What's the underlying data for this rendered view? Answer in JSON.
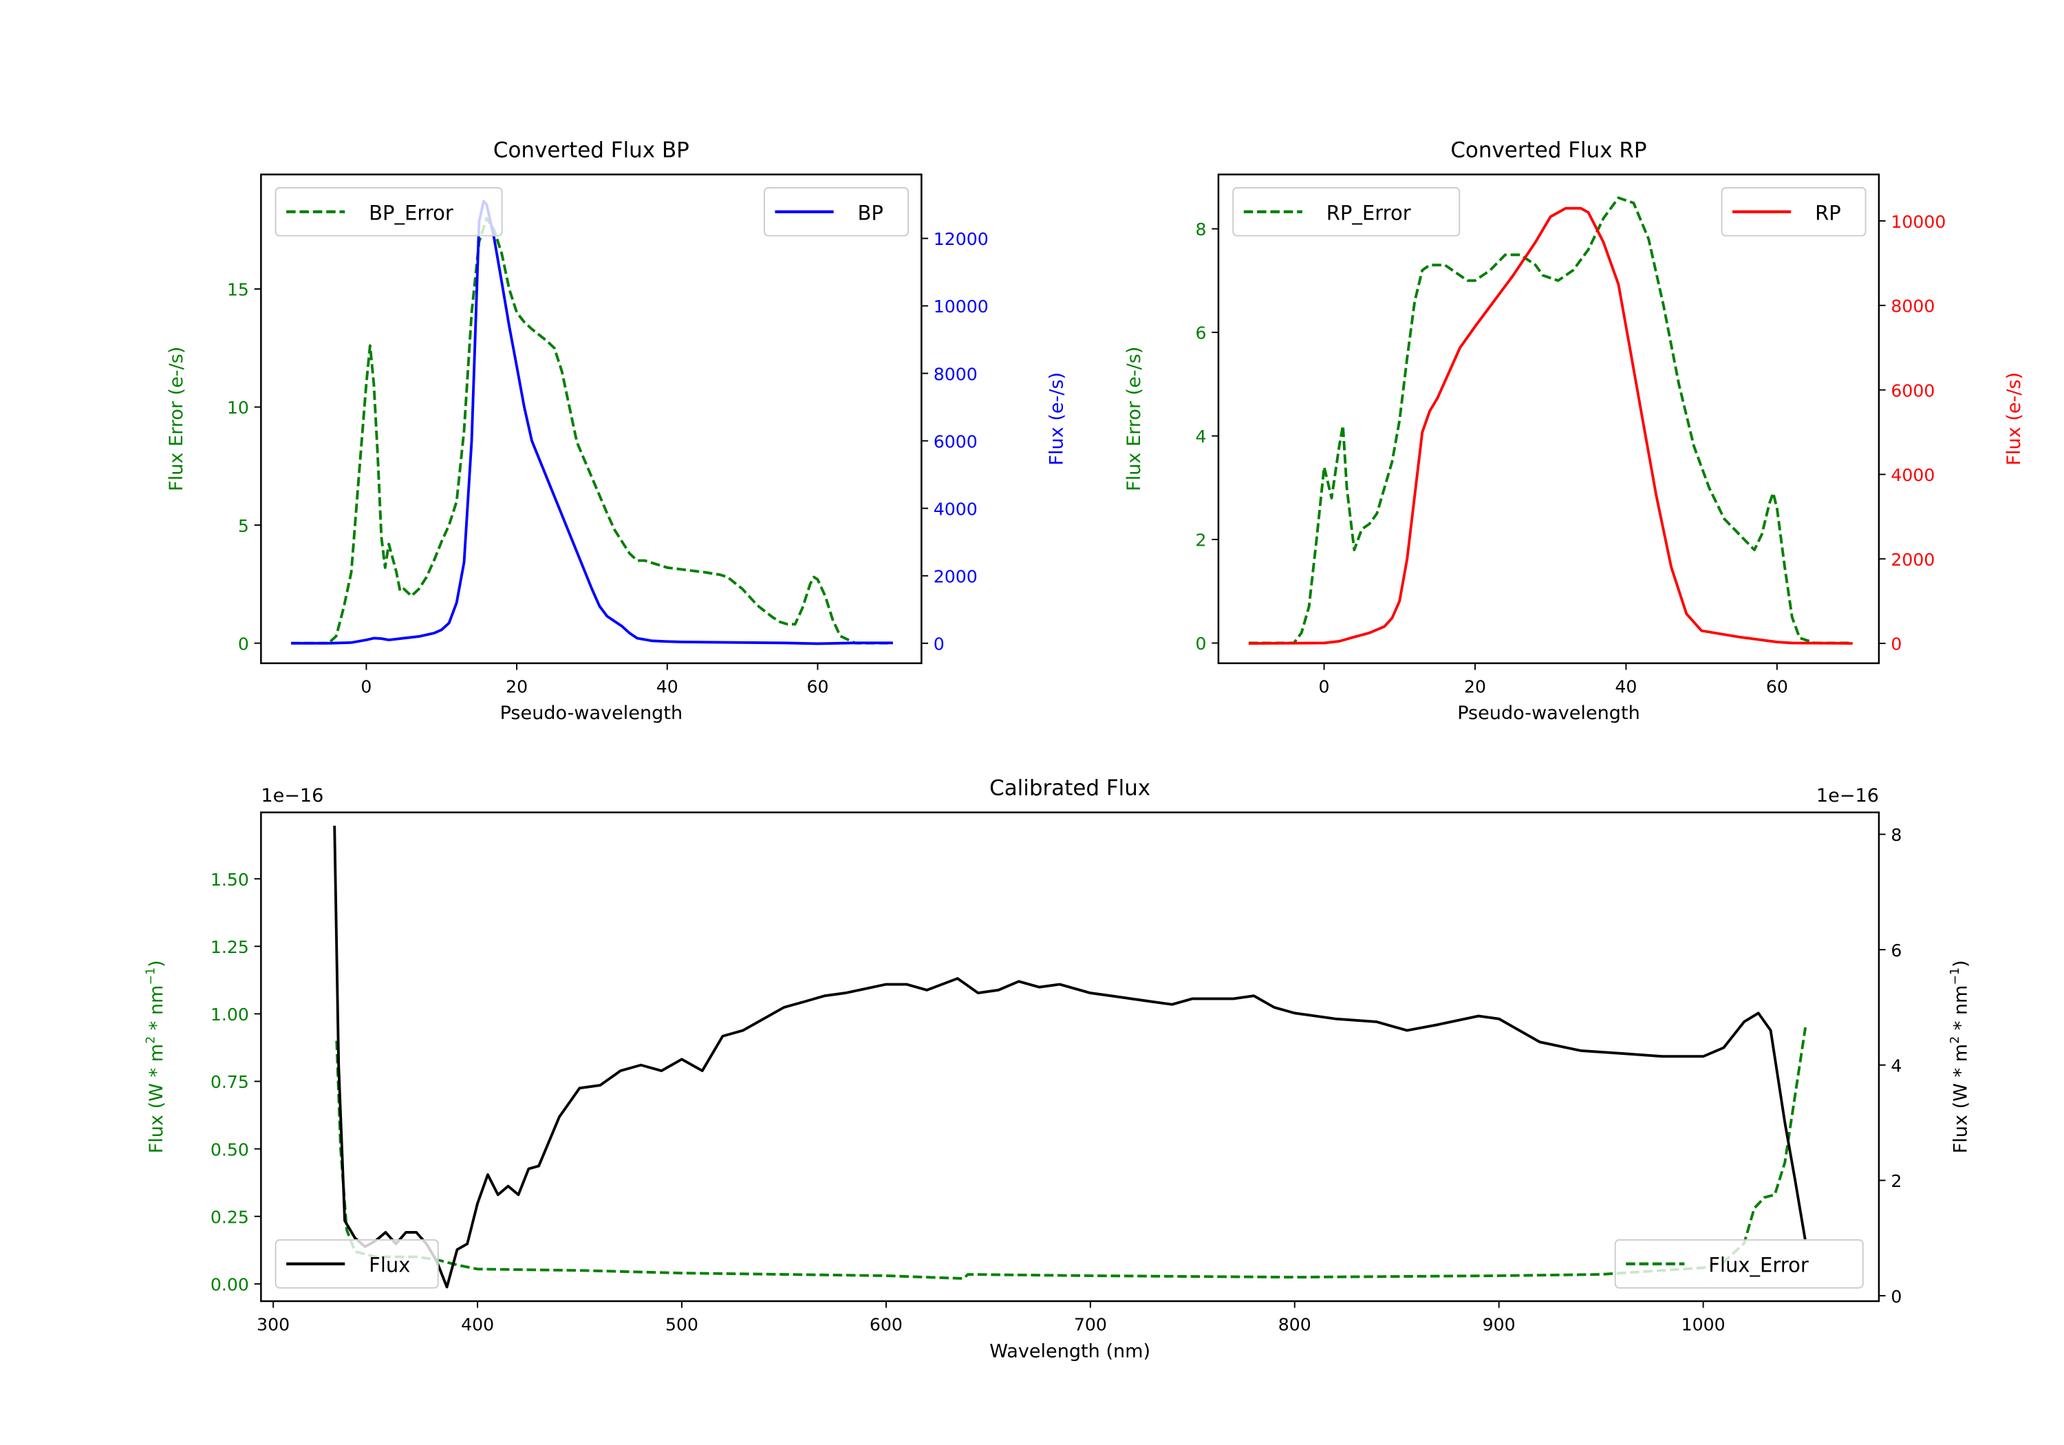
{
  "chart_data": [
    {
      "type": "line",
      "title": "Converted Flux BP",
      "xlabel": "Pseudo-wavelength",
      "ylabel": "Flux Error (e-/s)",
      "y2label": "Flux (e-/s)",
      "xlim": [
        -14,
        73.8
      ],
      "ylim": [
        -0.85,
        19.85
      ],
      "y2lim": [
        -592,
        13895
      ],
      "xticks": [
        0,
        20,
        40,
        60
      ],
      "yticks": [
        0,
        5,
        10,
        15
      ],
      "y2ticks": [
        0,
        2000,
        4000,
        6000,
        8000,
        10000,
        12000
      ],
      "colors": {
        "error": "#008000",
        "flux": "#0000ff",
        "axis2": "#0000ff",
        "axis1": "#008000"
      },
      "legend_left": {
        "label": "BP_Error",
        "placement": "upper-left"
      },
      "legend_right": {
        "label": "BP",
        "placement": "upper-right"
      },
      "series": [
        {
          "name": "BP_Error",
          "axis": "left",
          "style": "dashed",
          "x": [
            -10,
            -5,
            -4,
            -3,
            -2,
            -1,
            0,
            0.5,
            1,
            1.5,
            2,
            2.5,
            3,
            4,
            4.5,
            5,
            6,
            7,
            8,
            9,
            10,
            11,
            12,
            13,
            14,
            15,
            16,
            17,
            18,
            19,
            20,
            21,
            22,
            24,
            25,
            26,
            27,
            28,
            30,
            32,
            33,
            35,
            36,
            37,
            40,
            45,
            47,
            48,
            50,
            52,
            54,
            55,
            56,
            57,
            58,
            59,
            59.5,
            60,
            61,
            62,
            63,
            65,
            70
          ],
          "y": [
            0,
            0,
            0.3,
            1.5,
            3,
            7,
            11,
            12.6,
            11,
            8,
            4.5,
            3.2,
            4.2,
            3,
            2.2,
            2.3,
            2,
            2.3,
            2.8,
            3.5,
            4.3,
            5,
            6,
            9,
            14,
            17,
            18,
            17.5,
            16.5,
            15,
            14,
            13.6,
            13.3,
            12.8,
            12.5,
            11.5,
            10,
            8.5,
            7,
            5.5,
            4.8,
            3.8,
            3.5,
            3.5,
            3.2,
            3,
            2.9,
            2.8,
            2.3,
            1.6,
            1.1,
            0.9,
            0.8,
            0.8,
            1.5,
            2.5,
            2.8,
            2.7,
            2,
            1,
            0.3,
            0,
            0
          ]
        },
        {
          "name": "BP",
          "axis": "right",
          "style": "solid",
          "x": [
            -10,
            -5,
            -2,
            0,
            1,
            2,
            3,
            5,
            7,
            9,
            10,
            11,
            12,
            13,
            14,
            15,
            15.6,
            16,
            17,
            18,
            19,
            20,
            21,
            22,
            24,
            26,
            28,
            30,
            31,
            32,
            34,
            35,
            36,
            38,
            40,
            42,
            50,
            55,
            60,
            65,
            70
          ],
          "y": [
            0,
            0,
            20,
            100,
            150,
            140,
            100,
            150,
            200,
            300,
            400,
            600,
            1200,
            2400,
            6000,
            12500,
            13100,
            13000,
            12000,
            10700,
            9400,
            8200,
            7000,
            6000,
            4900,
            3800,
            2700,
            1600,
            1100,
            800,
            500,
            300,
            150,
            70,
            50,
            40,
            20,
            10,
            -10,
            10,
            10
          ]
        }
      ]
    },
    {
      "type": "line",
      "title": "Converted Flux RP",
      "xlabel": "Pseudo-wavelength",
      "ylabel": "Flux Error (e-/s)",
      "y2label": "Flux (e-/s)",
      "xlim": [
        -14,
        73.5
      ],
      "ylim": [
        -0.39,
        9.05
      ],
      "y2lim": [
        -470,
        11100
      ],
      "xticks": [
        0,
        20,
        40,
        60
      ],
      "yticks": [
        0,
        2,
        4,
        6,
        8
      ],
      "y2ticks": [
        0,
        2000,
        4000,
        6000,
        8000,
        10000
      ],
      "colors": {
        "error": "#008000",
        "flux": "#ff0000",
        "axis2": "#ff0000",
        "axis1": "#008000"
      },
      "legend_left": {
        "label": "RP_Error",
        "placement": "upper-left"
      },
      "legend_right": {
        "label": "RP",
        "placement": "upper-right"
      },
      "series": [
        {
          "name": "RP_Error",
          "axis": "left",
          "style": "dashed",
          "x": [
            -10,
            -4,
            -3,
            -2,
            -1,
            0,
            0.5,
            1,
            2,
            2.5,
            3,
            4,
            5,
            6,
            7,
            8,
            9,
            10,
            11,
            12,
            13,
            14,
            16,
            18,
            19,
            20,
            22,
            24,
            26,
            28,
            29,
            31,
            33,
            35,
            37,
            39,
            41,
            43,
            45,
            47,
            49,
            51,
            53,
            55,
            57,
            58,
            59,
            59.5,
            60,
            61,
            62,
            63,
            65,
            70
          ],
          "y": [
            0,
            0,
            0.2,
            0.7,
            2,
            3.4,
            3.1,
            2.8,
            3.8,
            4.2,
            3,
            1.8,
            2.2,
            2.3,
            2.5,
            3,
            3.5,
            4.3,
            5.5,
            6.6,
            7.2,
            7.3,
            7.3,
            7.1,
            7,
            7,
            7.2,
            7.5,
            7.5,
            7.3,
            7.1,
            7,
            7.2,
            7.6,
            8.2,
            8.6,
            8.5,
            7.8,
            6.5,
            5,
            3.8,
            3,
            2.4,
            2.1,
            1.8,
            2.1,
            2.7,
            2.9,
            2.6,
            1.5,
            0.5,
            0.1,
            0,
            0
          ]
        },
        {
          "name": "RP",
          "axis": "right",
          "style": "solid",
          "x": [
            -10,
            0,
            2,
            4,
            6,
            8,
            9,
            10,
            11,
            12,
            13,
            14,
            15,
            16,
            18,
            20,
            25,
            28,
            30,
            32,
            34,
            35,
            37,
            39,
            40,
            42,
            44,
            46,
            48,
            50,
            55,
            60,
            62,
            70
          ],
          "y": [
            0,
            10,
            50,
            150,
            250,
            400,
            600,
            1000,
            2000,
            3500,
            5000,
            5500,
            5800,
            6200,
            7000,
            7500,
            8700,
            9500,
            10100,
            10300,
            10300,
            10200,
            9500,
            8500,
            7500,
            5500,
            3500,
            1800,
            700,
            300,
            150,
            30,
            10,
            0
          ]
        }
      ]
    },
    {
      "type": "line",
      "title": "Calibrated Flux",
      "xlabel": "Wavelength (nm)",
      "ylabel": "Flux (W * m$^2$ * nm$^{-1}$)",
      "ylabel_display": [
        "Flux (W * m",
        "2",
        " * nm",
        "−1",
        ")"
      ],
      "y2label_display": [
        "Flux (W * m",
        "2",
        " * nm",
        "−1",
        ")"
      ],
      "offset_left": "1e−16",
      "offset_right": "1e−16",
      "xlim": [
        294,
        1086
      ],
      "ylim": [
        -0.064,
        1.746
      ],
      "y2lim": [
        -0.094,
        8.38
      ],
      "xticks": [
        300,
        400,
        500,
        600,
        700,
        800,
        900,
        1000
      ],
      "yticks": [
        "0.00",
        "0.25",
        "0.50",
        "0.75",
        "1.00",
        "1.25",
        "1.50"
      ],
      "y2ticks": [
        0,
        2,
        4,
        6,
        8
      ],
      "colors": {
        "error": "#008000",
        "flux": "#000000",
        "axis2": "#000000",
        "axis1": "#008000"
      },
      "legend_left": {
        "label": "Flux",
        "placement": "lower-left"
      },
      "legend_right": {
        "label": "Flux_Error",
        "placement": "lower-right"
      },
      "series": [
        {
          "name": "Flux_Error",
          "axis": "left",
          "style": "dashed",
          "x": [
            331,
            333,
            336,
            340,
            350,
            360,
            370,
            380,
            390,
            400,
            450,
            500,
            550,
            600,
            638,
            640,
            700,
            800,
            900,
            950,
            980,
            1000,
            1010,
            1020,
            1025,
            1030,
            1035,
            1040,
            1045,
            1050
          ],
          "y": [
            0.9,
            0.5,
            0.2,
            0.12,
            0.1,
            0.1,
            0.1,
            0.09,
            0.07,
            0.055,
            0.05,
            0.04,
            0.035,
            0.03,
            0.02,
            0.035,
            0.03,
            0.025,
            0.03,
            0.035,
            0.05,
            0.06,
            0.08,
            0.15,
            0.28,
            0.32,
            0.33,
            0.45,
            0.7,
            0.95
          ]
        },
        {
          "name": "Flux",
          "axis": "right",
          "style": "solid",
          "x": [
            330,
            332,
            335,
            340,
            345,
            350,
            355,
            360,
            365,
            370,
            375,
            380,
            385,
            390,
            395,
            400,
            405,
            410,
            415,
            420,
            425,
            430,
            440,
            450,
            460,
            470,
            480,
            490,
            500,
            510,
            520,
            530,
            540,
            550,
            560,
            570,
            580,
            600,
            610,
            620,
            635,
            645,
            655,
            665,
            675,
            685,
            700,
            710,
            720,
            730,
            740,
            750,
            770,
            780,
            790,
            800,
            820,
            840,
            855,
            870,
            890,
            900,
            920,
            940,
            960,
            980,
            1000,
            1010,
            1020,
            1027,
            1033,
            1040,
            1045,
            1050
          ],
          "y": [
            8.15,
            4,
            1.3,
            1.0,
            0.85,
            0.95,
            1.1,
            0.9,
            1.1,
            1.1,
            0.9,
            0.6,
            0.15,
            0.8,
            0.9,
            1.6,
            2.1,
            1.75,
            1.9,
            1.75,
            2.2,
            2.25,
            3.1,
            3.6,
            3.65,
            3.9,
            4.0,
            3.9,
            4.1,
            3.9,
            4.5,
            4.6,
            4.8,
            5.0,
            5.1,
            5.2,
            5.25,
            5.4,
            5.4,
            5.3,
            5.5,
            5.25,
            5.3,
            5.45,
            5.35,
            5.4,
            5.25,
            5.2,
            5.15,
            5.1,
            5.05,
            5.15,
            5.15,
            5.2,
            5.0,
            4.9,
            4.8,
            4.75,
            4.6,
            4.7,
            4.85,
            4.8,
            4.4,
            4.25,
            4.2,
            4.15,
            4.15,
            4.3,
            4.75,
            4.9,
            4.6,
            3.0,
            2.0,
            0.95
          ]
        }
      ]
    }
  ]
}
